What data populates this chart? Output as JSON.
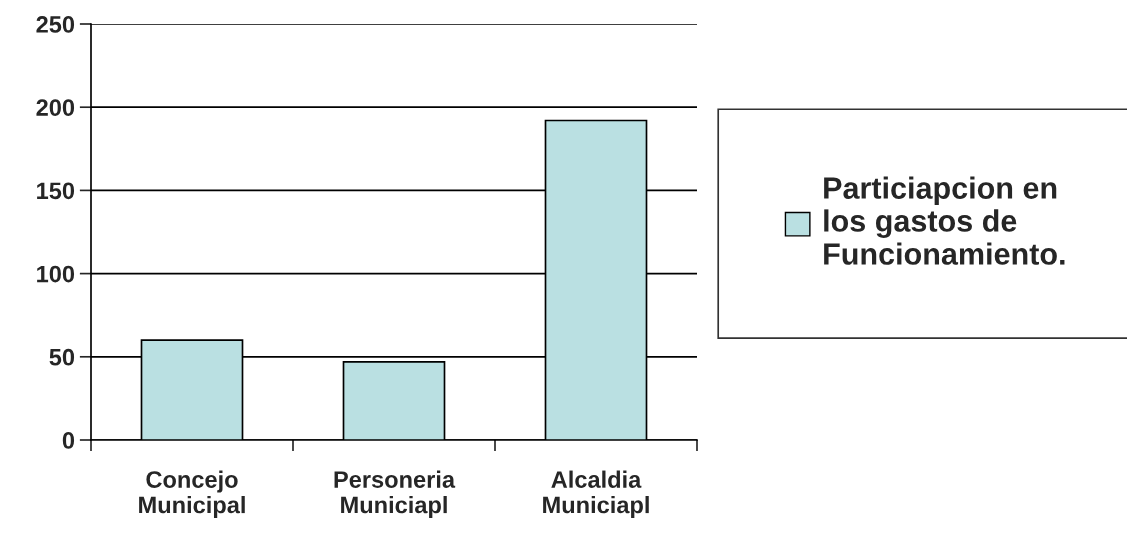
{
  "chart_data": {
    "type": "bar",
    "categories": [
      "Concejo\nMunicipal",
      "Personeria\nMuniciapl",
      "Alcaldia\nMuniciapl"
    ],
    "series": [
      {
        "name": "Particiapcion en\nlos gastos de\nFuncionamiento.",
        "color": "#bae0e2",
        "values": [
          60,
          47,
          192
        ]
      }
    ],
    "ylim": [
      0,
      250
    ],
    "yticks": [
      0,
      50,
      100,
      150,
      200,
      250
    ],
    "grid": "y",
    "legend": "right"
  }
}
